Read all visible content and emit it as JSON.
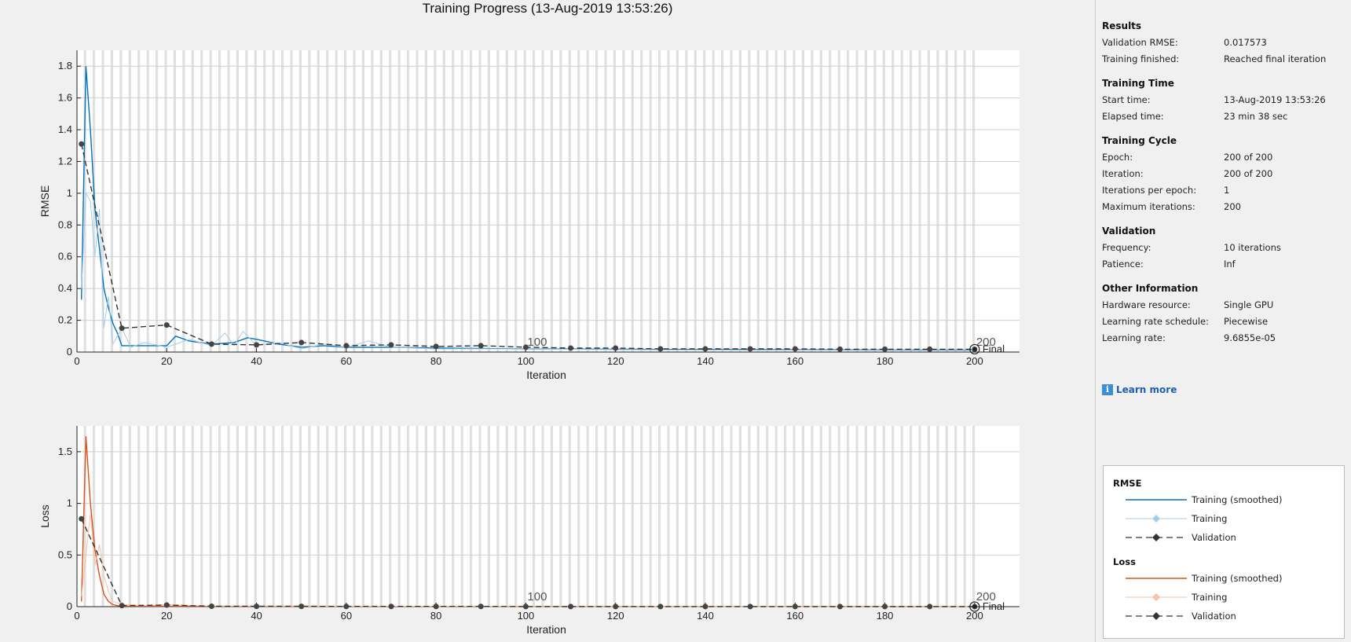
{
  "title": "Training Progress (13-Aug-2019 13:53:26)",
  "final_label": "Final",
  "info_panel": {
    "sections": [
      {
        "title": "Results",
        "rows": [
          {
            "label": "Validation RMSE:",
            "value": "0.017573"
          },
          {
            "label": "Training finished:",
            "value": "Reached final iteration"
          }
        ]
      },
      {
        "title": "Training Time",
        "rows": [
          {
            "label": "Start time:",
            "value": "13-Aug-2019 13:53:26"
          },
          {
            "label": "Elapsed time:",
            "value": "23 min 38 sec"
          }
        ]
      },
      {
        "title": "Training Cycle",
        "rows": [
          {
            "label": "Epoch:",
            "value": "200 of 200"
          },
          {
            "label": "Iteration:",
            "value": "200 of 200"
          },
          {
            "label": "Iterations per epoch:",
            "value": "1"
          },
          {
            "label": "Maximum iterations:",
            "value": "200"
          }
        ]
      },
      {
        "title": "Validation",
        "rows": [
          {
            "label": "Frequency:",
            "value": "10 iterations"
          },
          {
            "label": "Patience:",
            "value": "Inf"
          }
        ]
      },
      {
        "title": "Other Information",
        "rows": [
          {
            "label": "Hardware resource:",
            "value": "Single GPU"
          },
          {
            "label": "Learning rate schedule:",
            "value": "Piecewise"
          },
          {
            "label": "Learning rate:",
            "value": "9.6855e-05"
          }
        ]
      }
    ],
    "learn_more": "Learn more"
  },
  "legend": {
    "groups": [
      {
        "title": "RMSE",
        "entries": [
          {
            "label": "Training (smoothed)",
            "style": "solid",
            "color": "#0072bd"
          },
          {
            "label": "Training",
            "style": "diamond",
            "color": "#a6cde8"
          },
          {
            "label": "Validation",
            "style": "dashed",
            "color": "#333333"
          }
        ]
      },
      {
        "title": "Loss",
        "entries": [
          {
            "label": "Training (smoothed)",
            "style": "solid",
            "color": "#d95319"
          },
          {
            "label": "Training",
            "style": "diamond",
            "color": "#f3c2a8"
          },
          {
            "label": "Validation",
            "style": "dashed",
            "color": "#333333"
          }
        ]
      }
    ]
  },
  "chart_data": [
    {
      "type": "line",
      "xlabel": "Iteration",
      "ylabel": "RMSE",
      "xlim": [
        0,
        210
      ],
      "ylim": [
        0,
        1.9
      ],
      "xticks": [
        0,
        20,
        40,
        60,
        80,
        100,
        120,
        140,
        160,
        180,
        200
      ],
      "yticks": [
        0,
        0.2,
        0.4,
        0.6,
        0.8,
        1,
        1.2,
        1.4,
        1.6,
        1.8
      ],
      "epoch_labels": [
        "100",
        "200"
      ],
      "series": [
        {
          "name": "Training (smoothed)",
          "color": "#0072bd",
          "x": [
            1,
            2,
            3,
            4,
            5,
            6,
            7,
            8,
            9,
            10,
            15,
            18,
            20,
            22,
            25,
            30,
            35,
            38,
            40,
            45,
            50,
            55,
            60,
            70,
            80,
            100,
            120,
            150,
            200
          ],
          "y": [
            0.33,
            1.8,
            1.4,
            0.9,
            0.65,
            0.4,
            0.28,
            0.18,
            0.12,
            0.04,
            0.04,
            0.04,
            0.04,
            0.1,
            0.07,
            0.05,
            0.06,
            0.09,
            0.08,
            0.05,
            0.03,
            0.04,
            0.03,
            0.03,
            0.025,
            0.02,
            0.018,
            0.015,
            0.012
          ]
        },
        {
          "name": "Training",
          "color": "#a6cde8",
          "x": [
            1,
            2,
            3,
            4,
            5,
            6,
            7,
            8,
            10,
            12,
            15,
            20,
            25,
            30,
            33,
            35,
            37,
            40,
            45,
            50,
            55,
            60,
            65,
            70,
            80,
            100,
            120,
            150,
            200
          ],
          "y": [
            0.4,
            1.0,
            0.95,
            0.6,
            0.9,
            0.15,
            0.35,
            0.05,
            0.15,
            0.03,
            0.06,
            0.03,
            0.08,
            0.04,
            0.12,
            0.04,
            0.13,
            0.04,
            0.06,
            0.02,
            0.05,
            0.03,
            0.07,
            0.03,
            0.02,
            0.02,
            0.015,
            0.012,
            0.01
          ]
        },
        {
          "name": "Validation",
          "color": "#333333",
          "x": [
            1,
            10,
            20,
            30,
            40,
            50,
            60,
            70,
            80,
            90,
            100,
            110,
            120,
            130,
            140,
            150,
            160,
            170,
            180,
            190,
            200
          ],
          "y": [
            1.31,
            0.15,
            0.17,
            0.05,
            0.045,
            0.06,
            0.04,
            0.045,
            0.035,
            0.04,
            0.03,
            0.025,
            0.025,
            0.02,
            0.02,
            0.02,
            0.02,
            0.018,
            0.018,
            0.018,
            0.0176
          ]
        }
      ]
    },
    {
      "type": "line",
      "xlabel": "Iteration",
      "ylabel": "Loss",
      "xlim": [
        0,
        210
      ],
      "ylim": [
        0,
        1.75
      ],
      "xticks": [
        0,
        20,
        40,
        60,
        80,
        100,
        120,
        140,
        160,
        180,
        200
      ],
      "yticks": [
        0,
        0.5,
        1,
        1.5
      ],
      "epoch_labels": [
        "100",
        "200"
      ],
      "series": [
        {
          "name": "Training (smoothed)",
          "color": "#d95319",
          "x": [
            1,
            2,
            3,
            4,
            5,
            6,
            7,
            8,
            9,
            10,
            20,
            40,
            100,
            200
          ],
          "y": [
            0.05,
            1.65,
            1.0,
            0.55,
            0.3,
            0.12,
            0.05,
            0.02,
            0.01,
            0.005,
            0.004,
            0.003,
            0.002,
            0.001
          ]
        },
        {
          "name": "Training",
          "color": "#f3c2a8",
          "x": [
            1,
            2,
            3,
            4,
            5,
            6,
            7,
            8,
            10,
            15,
            20,
            30,
            100,
            200
          ],
          "y": [
            0.1,
            0.5,
            0.9,
            0.4,
            0.6,
            0.3,
            0.15,
            0.05,
            0.02,
            0.01,
            0.02,
            0.005,
            0.002,
            0.001
          ]
        },
        {
          "name": "Validation",
          "color": "#333333",
          "x": [
            1,
            10,
            20,
            30,
            40,
            50,
            60,
            70,
            80,
            90,
            100,
            110,
            120,
            130,
            140,
            150,
            160,
            170,
            180,
            190,
            200
          ],
          "y": [
            0.85,
            0.01,
            0.015,
            0.004,
            0.003,
            0.003,
            0.002,
            0.002,
            0.002,
            0.002,
            0.001,
            0.001,
            0.001,
            0.001,
            0.001,
            0.001,
            0.001,
            0.001,
            0.001,
            0.001,
            0.0003
          ]
        }
      ]
    }
  ]
}
